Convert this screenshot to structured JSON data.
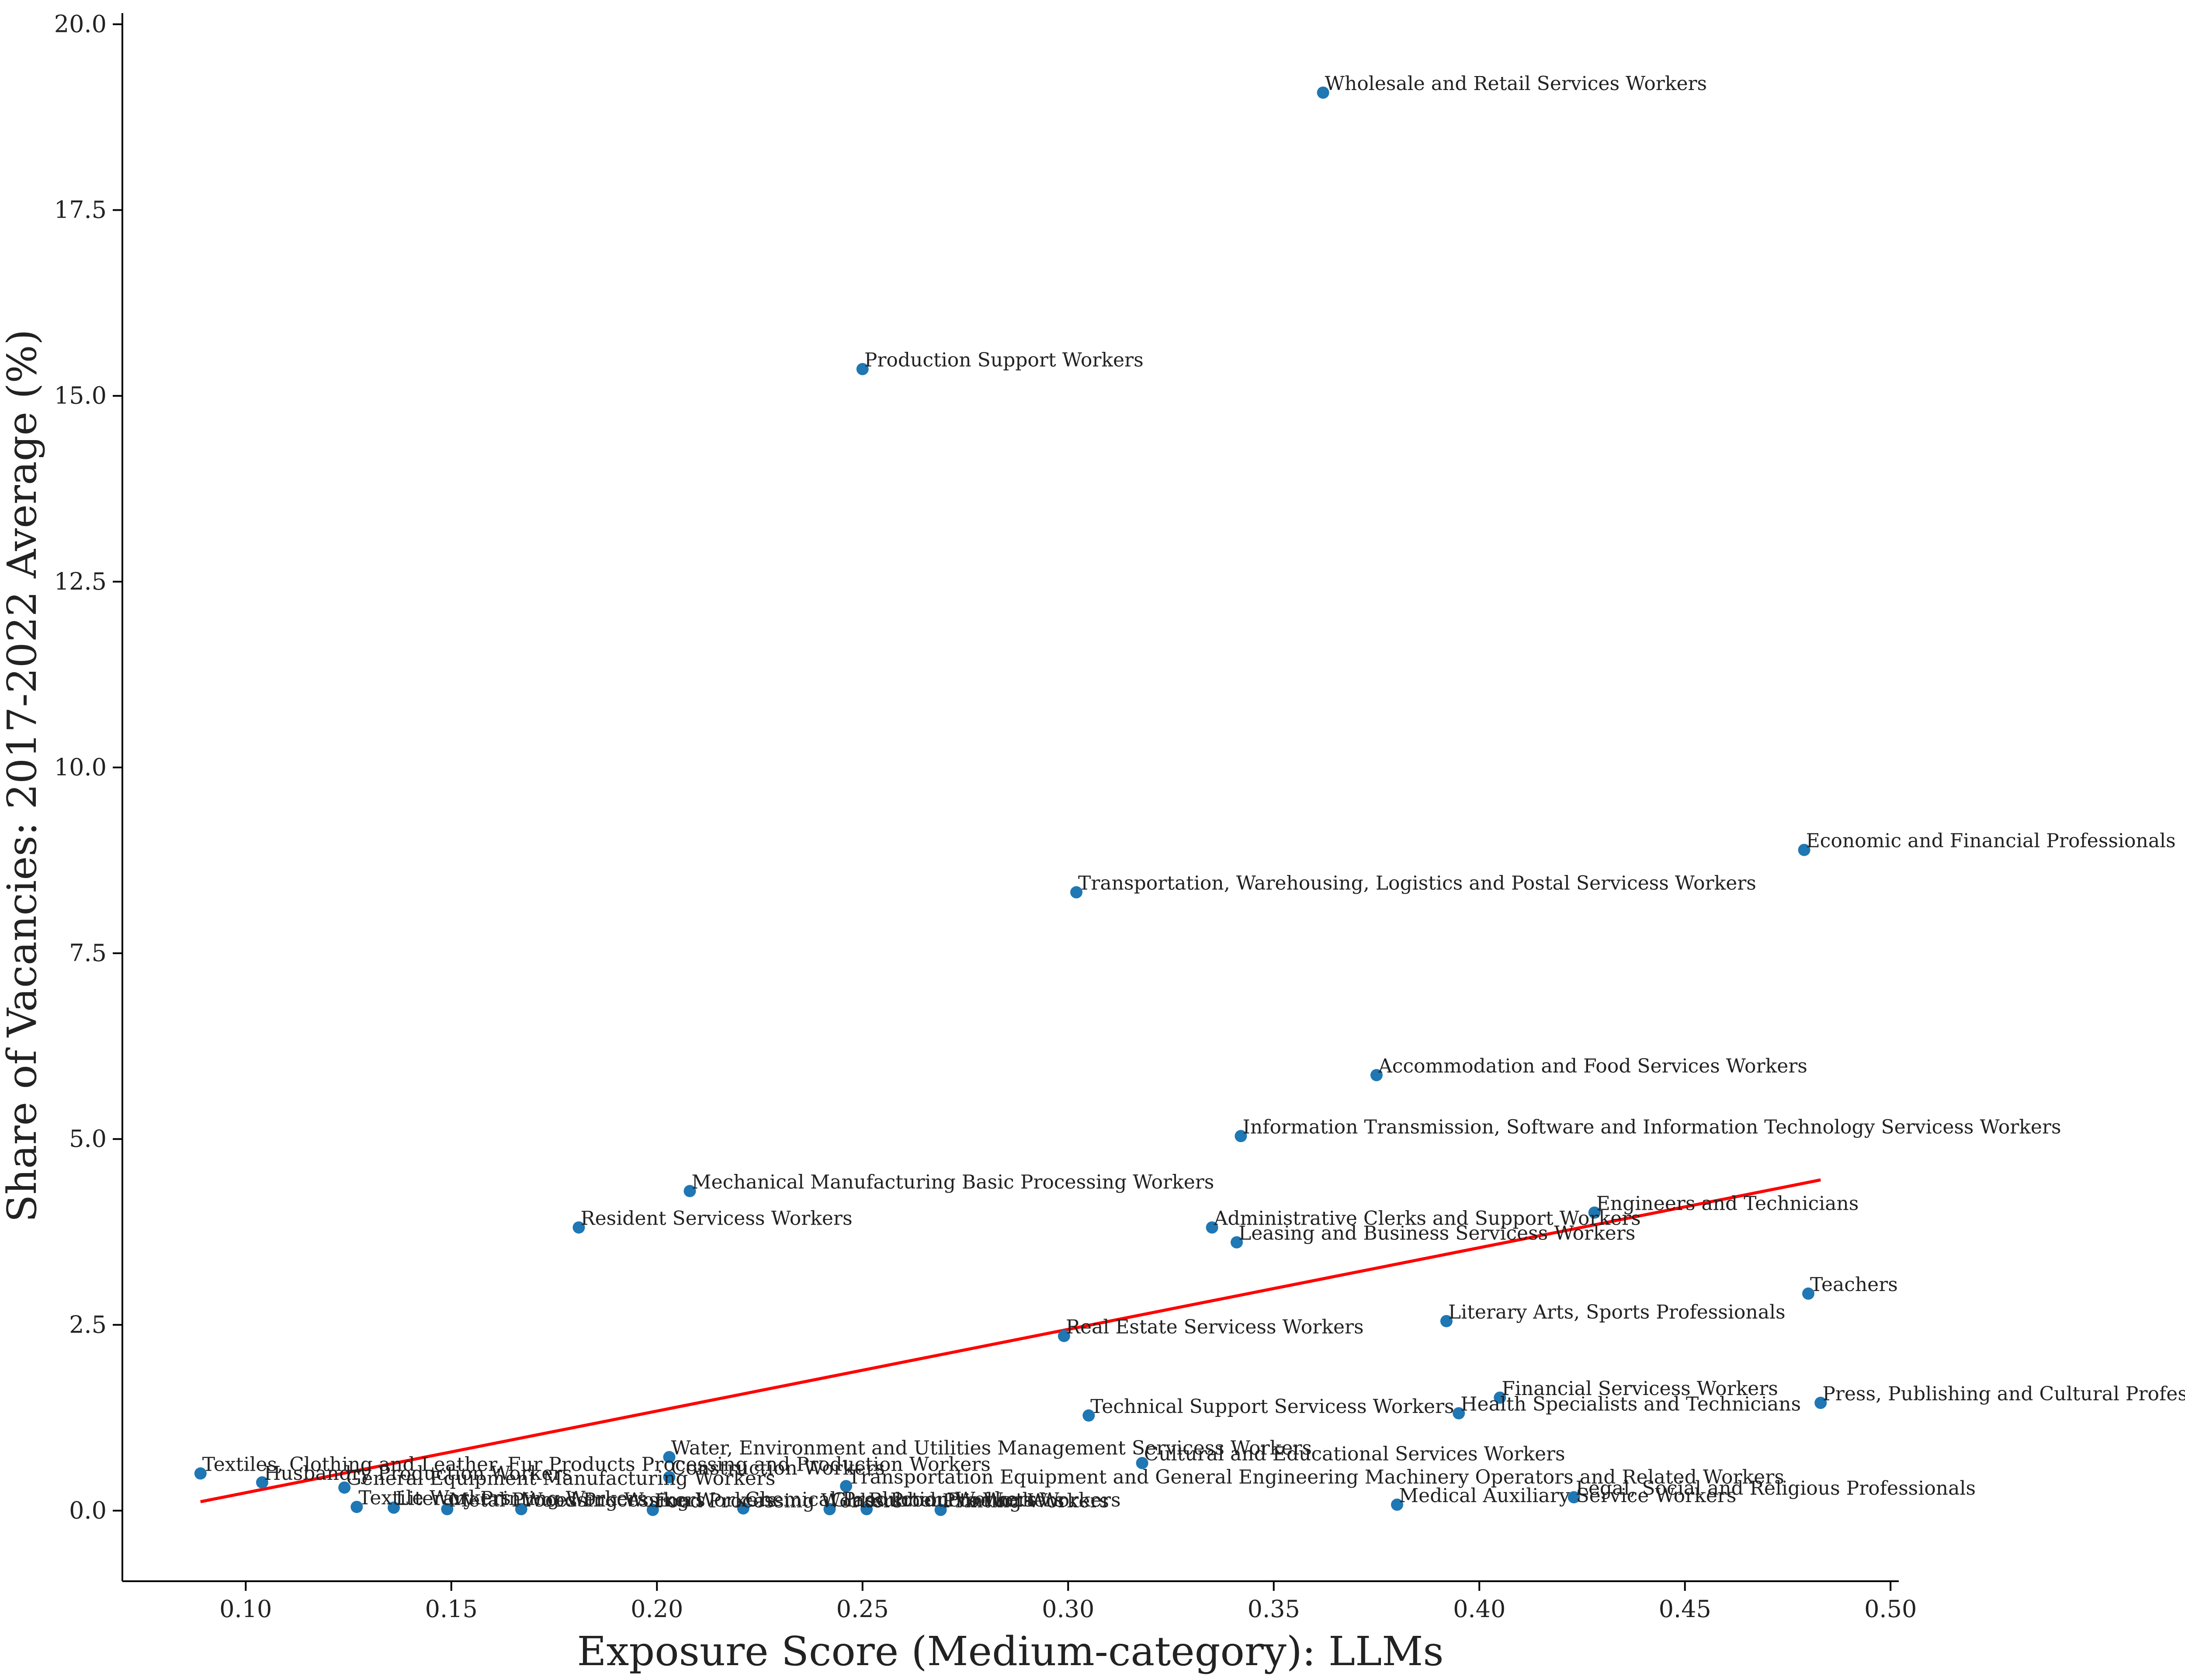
{
  "chart_data": {
    "type": "scatter",
    "title": "",
    "xlabel": "Exposure Score (Medium-category): LLMs",
    "ylabel": "Share of Vacancies: 2017-2022 Average (%)",
    "xlim": [
      0.07,
      0.502
    ],
    "ylim": [
      -0.95,
      20.15
    ],
    "xticks": [
      "0.10",
      "0.15",
      "0.20",
      "0.25",
      "0.30",
      "0.35",
      "0.40",
      "0.45",
      "0.50"
    ],
    "yticks": [
      "0.0",
      "2.5",
      "5.0",
      "7.5",
      "10.0",
      "12.5",
      "15.0",
      "17.5",
      "20.0"
    ],
    "grid": false,
    "colors": {
      "points": "#1f77b4",
      "trend": "#ff0000",
      "axes": "#000000"
    },
    "trend_line": {
      "x": [
        0.089,
        0.483
      ],
      "y": [
        0.12,
        4.45
      ]
    },
    "points": [
      {
        "x": 0.362,
        "y": 19.08,
        "label": "Wholesale and Retail Services Workers"
      },
      {
        "x": 0.25,
        "y": 15.36,
        "label": "Production Support Workers"
      },
      {
        "x": 0.479,
        "y": 8.89,
        "label": "Economic and Financial Professionals"
      },
      {
        "x": 0.302,
        "y": 8.32,
        "label": "Transportation, Warehousing, Logistics and Postal Servicess Workers"
      },
      {
        "x": 0.375,
        "y": 5.86,
        "label": "Accommodation and Food Services Workers"
      },
      {
        "x": 0.342,
        "y": 5.04,
        "label": "Information Transmission, Software and Information Technology Servicess Workers"
      },
      {
        "x": 0.208,
        "y": 4.3,
        "label": "Mechanical Manufacturing Basic Processing Workers"
      },
      {
        "x": 0.428,
        "y": 4.01,
        "label": "Engineers and Technicians"
      },
      {
        "x": 0.335,
        "y": 3.81,
        "label": "Administrative Clerks and Support Workers"
      },
      {
        "x": 0.181,
        "y": 3.81,
        "label": "Resident Servicess Workers"
      },
      {
        "x": 0.341,
        "y": 3.61,
        "label": "Leasing and Business Servicess Workers"
      },
      {
        "x": 0.48,
        "y": 2.92,
        "label": "Teachers"
      },
      {
        "x": 0.392,
        "y": 2.55,
        "label": "Literary Arts, Sports Professionals"
      },
      {
        "x": 0.299,
        "y": 2.35,
        "label": "Real Estate Servicess Workers"
      },
      {
        "x": 0.405,
        "y": 1.52,
        "label": "Financial Servicess Workers"
      },
      {
        "x": 0.483,
        "y": 1.45,
        "label": "Press, Publishing and Cultural Professionals"
      },
      {
        "x": 0.395,
        "y": 1.31,
        "label": "Health Specialists and Technicians"
      },
      {
        "x": 0.305,
        "y": 1.28,
        "label": "Technical Support Servicess Workers"
      },
      {
        "x": 0.203,
        "y": 0.72,
        "label": "Water, Environment and Utilities Management Servicess Workers"
      },
      {
        "x": 0.318,
        "y": 0.64,
        "label": "Cultural and Educational Services Workers"
      },
      {
        "x": 0.089,
        "y": 0.5,
        "label": "Textiles, Clothing and Leather, Fur Products Processing and Production Workers"
      },
      {
        "x": 0.203,
        "y": 0.45,
        "label": "Construction Workers"
      },
      {
        "x": 0.104,
        "y": 0.38,
        "label": "Husbandry Production Workers"
      },
      {
        "x": 0.246,
        "y": 0.33,
        "label": "Transportation Equipment and General Engineering Machinery Operators and Related Workers"
      },
      {
        "x": 0.124,
        "y": 0.31,
        "label": "General Equipment Manufacturing Workers"
      },
      {
        "x": 0.423,
        "y": 0.18,
        "label": "Legal, Social and Religious Professionals"
      },
      {
        "x": 0.38,
        "y": 0.08,
        "label": "Medical Auxiliary Service Workers"
      },
      {
        "x": 0.127,
        "y": 0.05,
        "label": "Textile Workers"
      },
      {
        "x": 0.136,
        "y": 0.04,
        "label": "Literary Printing Workers"
      },
      {
        "x": 0.149,
        "y": 0.02,
        "label": "Metal Processing Workers"
      },
      {
        "x": 0.167,
        "y": 0.02,
        "label": "Wood Processing Workers"
      },
      {
        "x": 0.199,
        "y": 0.01,
        "label": "Food Processing Workers"
      },
      {
        "x": 0.221,
        "y": 0.03,
        "label": "Chemical Production Workers"
      },
      {
        "x": 0.242,
        "y": 0.02,
        "label": "Glass Products Workers"
      },
      {
        "x": 0.251,
        "y": 0.02,
        "label": "Rubber Products Workers"
      },
      {
        "x": 0.269,
        "y": 0.01,
        "label": "Printing Workers"
      }
    ]
  }
}
